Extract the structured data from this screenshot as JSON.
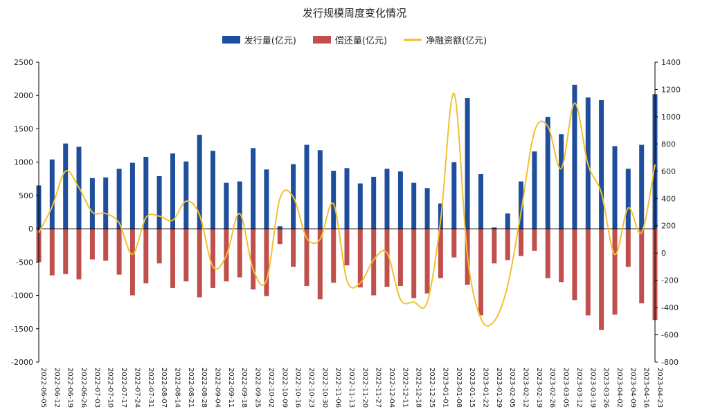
{
  "chart_data": {
    "type": "bar",
    "title": "发行规模周度变化情况",
    "categories": [
      "2022-06-05",
      "2022-06-12",
      "2022-06-19",
      "2022-06-26",
      "2022-07-03",
      "2022-07-10",
      "2022-07-17",
      "2022-07-24",
      "2022-07-31",
      "2022-08-07",
      "2022-08-14",
      "2022-08-21",
      "2022-08-28",
      "2022-09-04",
      "2022-09-11",
      "2022-09-18",
      "2022-09-25",
      "2022-10-02",
      "2022-10-09",
      "2022-10-16",
      "2022-10-23",
      "2022-10-30",
      "2022-11-06",
      "2022-11-13",
      "2022-11-20",
      "2022-11-27",
      "2022-12-04",
      "2022-12-11",
      "2022-12-18",
      "2022-12-25",
      "2023-01-01",
      "2023-01-08",
      "2023-01-15",
      "2023-01-22",
      "2023-01-29",
      "2023-02-05",
      "2023-02-12",
      "2023-02-19",
      "2023-02-26",
      "2023-03-05",
      "2023-03-12",
      "2023-03-19",
      "2023-03-26",
      "2023-04-02",
      "2023-04-09",
      "2023-04-16",
      "2023-04-23"
    ],
    "series": [
      {
        "name": "发行量(亿元)",
        "axis": "left",
        "type": "bar",
        "values": [
          650,
          1040,
          1280,
          1230,
          760,
          770,
          900,
          990,
          1080,
          790,
          1130,
          1010,
          1410,
          1170,
          690,
          710,
          1210,
          890,
          40,
          970,
          1260,
          1180,
          870,
          910,
          680,
          780,
          900,
          860,
          690,
          610,
          380,
          1000,
          1960,
          820,
          20,
          230,
          710,
          1160,
          1680,
          1420,
          2160,
          1970,
          1930,
          1240,
          900,
          1260,
          2020
        ]
      },
      {
        "name": "偿还量(亿元)",
        "axis": "left",
        "type": "bar",
        "values": [
          -500,
          -700,
          -680,
          -760,
          -460,
          -480,
          -690,
          -1000,
          -820,
          -520,
          -890,
          -790,
          -1030,
          -890,
          -790,
          -730,
          -910,
          -1010,
          -230,
          -570,
          -860,
          -1060,
          -810,
          -550,
          -880,
          -1000,
          -870,
          -860,
          -1040,
          -970,
          -740,
          -430,
          -840,
          -1300,
          -520,
          -470,
          -410,
          -330,
          -740,
          -800,
          -1070,
          -1300,
          -1520,
          -1290,
          -570,
          -1120,
          -1370
        ]
      },
      {
        "name": "净融资额(亿元)",
        "axis": "right",
        "type": "line",
        "values": [
          150,
          340,
          600,
          480,
          300,
          290,
          220,
          -10,
          260,
          270,
          240,
          380,
          280,
          -100,
          -20,
          290,
          -120,
          -200,
          400,
          410,
          110,
          100,
          360,
          -200,
          -220,
          -50,
          0,
          -340,
          -360,
          -360,
          240,
          1170,
          -20,
          -480,
          -500,
          -240,
          300,
          890,
          930,
          620,
          1100,
          650,
          440,
          -10,
          330,
          150,
          650
        ]
      }
    ],
    "left_axis": {
      "min": -2000,
      "max": 2500,
      "step": 500,
      "ticks": [
        "2500",
        "2000",
        "1500",
        "1000",
        "500",
        "0",
        "-500",
        "-1000",
        "-1500",
        "-2000"
      ]
    },
    "right_axis": {
      "min": -800,
      "max": 1400,
      "step": 200,
      "ticks": [
        "1400",
        "1200",
        "1000",
        "800",
        "600",
        "400",
        "200",
        "0",
        "-200",
        "-400",
        "-600",
        "-800"
      ]
    },
    "colors": {
      "issue": "#1f4e9c",
      "repay": "#c0504d",
      "net": "#f2c12e",
      "axis": "#000000"
    },
    "legend_position": "top-center",
    "grid": false
  }
}
